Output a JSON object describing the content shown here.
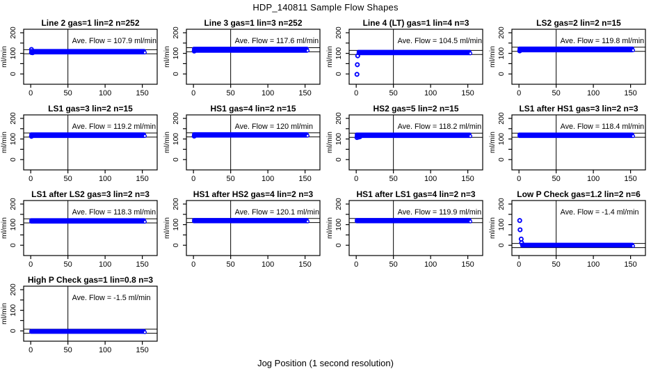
{
  "title": "HDP_140811  Sample Flow Shapes",
  "xlabel": "Jog Position (1 second resolution)",
  "colors": {
    "points": "#0000ff",
    "axis": "#000000",
    "reference_line": "#000000",
    "background": "#ffffff"
  },
  "chart_data": {
    "type": "scatter",
    "title": "HDP_140811  Sample Flow Shapes",
    "xlabel": "Jog Position (1 second resolution)",
    "ylabel_each": "ml/min",
    "ave_prefix": "Ave. Flow =",
    "ave_unit": "ml/min",
    "layout": {
      "rows": 4,
      "cols": 4,
      "xlim": [
        -9.5,
        170
      ],
      "ylim": [
        -50,
        217
      ],
      "x_ticks": [
        0,
        50,
        100,
        150
      ],
      "y_ticks_major": [
        0,
        100,
        200
      ],
      "y_ticks_minor": [
        50,
        150
      ],
      "vline_x": 50,
      "hline_offset_from_mean": 10,
      "grid": false
    },
    "panels": [
      {
        "title": "Line 2 gas=1 lin=2 n=252",
        "ave": 107.9,
        "band": {
          "x0": 0,
          "x1": 153,
          "y0": 100,
          "y1": 116
        },
        "points": [
          [
            1,
            119
          ],
          [
            1,
            104
          ],
          [
            2.5,
            103
          ]
        ]
      },
      {
        "title": "Line 3 gas=1 lin=3 n=252",
        "ave": 117.6,
        "band": {
          "x0": 0,
          "x1": 153,
          "y0": 108,
          "y1": 127
        },
        "points": [
          [
            1,
            111
          ]
        ]
      },
      {
        "title": "Line 4 (LT) gas=1 lin=4 n=3",
        "ave": 104.5,
        "band": {
          "x0": 2.5,
          "x1": 153,
          "y0": 96,
          "y1": 112
        },
        "points": [
          [
            2,
            88
          ],
          [
            1.5,
            45
          ],
          [
            1,
            -2
          ]
        ]
      },
      {
        "title": "LS2 gas=2 lin=2 n=15",
        "ave": 119.8,
        "band": {
          "x0": 0,
          "x1": 153,
          "y0": 110,
          "y1": 128
        },
        "points": [
          [
            1,
            112
          ]
        ]
      },
      {
        "title": "LS1 gas=3 lin=2 n=15",
        "ave": 119.2,
        "band": {
          "x0": 0,
          "x1": 153,
          "y0": 110,
          "y1": 127
        },
        "points": [
          [
            1,
            113
          ]
        ]
      },
      {
        "title": "HS1 gas=4 lin=2 n=15",
        "ave": 120,
        "band": {
          "x0": 0,
          "x1": 153,
          "y0": 112,
          "y1": 128
        },
        "points": [
          [
            1,
            114
          ]
        ]
      },
      {
        "title": "HS2 gas=5 lin=2 n=15",
        "ave": 118.2,
        "band": {
          "x0": 0,
          "x1": 153,
          "y0": 110,
          "y1": 126
        },
        "points": [
          [
            1,
            107
          ],
          [
            3,
            109
          ],
          [
            5,
            111
          ]
        ]
      },
      {
        "title": "LS1 after HS1 gas=3 lin=2 n=3",
        "ave": 118.4,
        "band": {
          "x0": 0,
          "x1": 153,
          "y0": 110,
          "y1": 126
        },
        "points": []
      },
      {
        "title": "LS1 after LS2 gas=3 lin=2 n=3",
        "ave": 118.3,
        "band": {
          "x0": 0,
          "x1": 153,
          "y0": 110,
          "y1": 126
        },
        "points": []
      },
      {
        "title": "HS1 after HS2 gas=4 lin=2 n=3",
        "ave": 120.1,
        "band": {
          "x0": 0,
          "x1": 153,
          "y0": 112,
          "y1": 127
        },
        "points": []
      },
      {
        "title": "HS1 after LS1 gas=4 lin=2 n=3",
        "ave": 119.9,
        "band": {
          "x0": 0,
          "x1": 153,
          "y0": 112,
          "y1": 127
        },
        "points": []
      },
      {
        "title": "Low P Check gas=1.2 lin=2 n=6",
        "ave": -1.4,
        "band": {
          "x0": 3.5,
          "x1": 153,
          "y0": -6,
          "y1": 7
        },
        "points": [
          [
            1,
            120
          ],
          [
            1.5,
            75
          ],
          [
            3,
            30
          ],
          [
            3.5,
            12
          ]
        ]
      },
      {
        "title": "High P Check gas=1 lin=0.8 n=3",
        "ave": -1.5,
        "band": {
          "x0": 0,
          "x1": 153,
          "y0": -9,
          "y1": 4
        },
        "points": []
      }
    ]
  }
}
